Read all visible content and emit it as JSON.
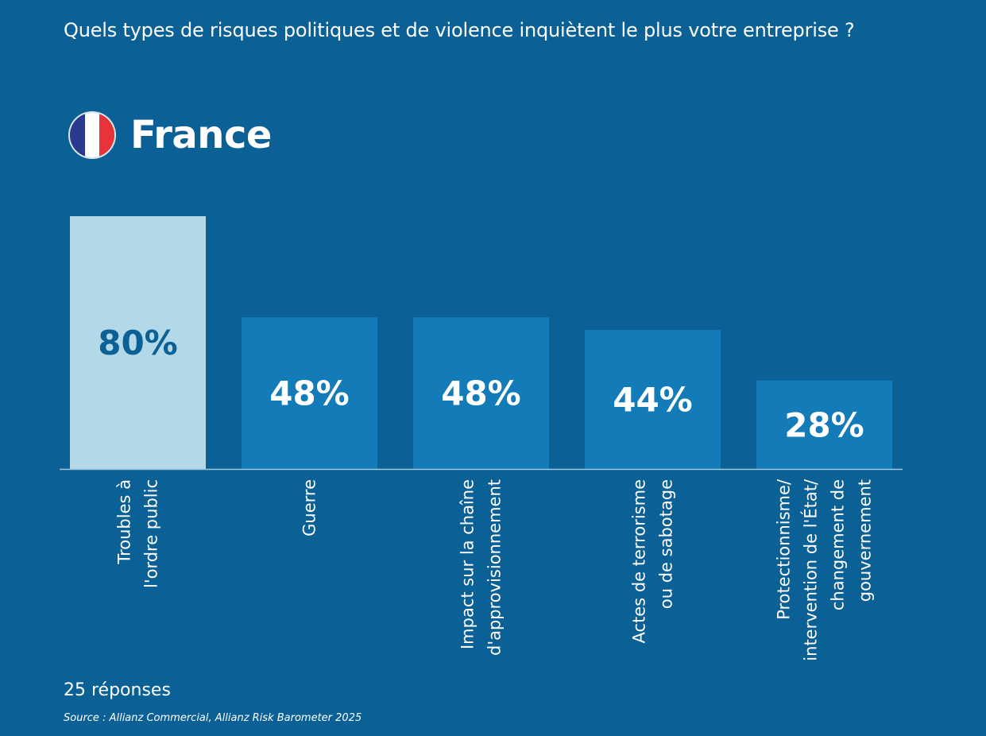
{
  "header": {
    "question": "Quels types de risques politiques et de violence inquiètent le plus votre entreprise ?",
    "country": "France",
    "flag_icon": "france-flag-icon",
    "flag_colors": [
      "#2b3a8c",
      "#ffffff",
      "#e8333b"
    ]
  },
  "colors": {
    "background": "#0b6196",
    "bar_highlight": "#b3d8e8",
    "bar_default": "#127bb8",
    "value_on_highlight": "#0b6196",
    "value_on_default": "#ffffff",
    "baseline": "#9fc4dc"
  },
  "chart_data": {
    "type": "bar",
    "categories": [
      [
        "Troubles à",
        "l'ordre public"
      ],
      [
        "Guerre"
      ],
      [
        "Impact sur la chaîne",
        "d'approvisionnement"
      ],
      [
        "Actes de terrorisme",
        "ou de sabotage"
      ],
      [
        "Protectionnisme/",
        "intervention de l'État/",
        "changement de",
        "gouvernement"
      ]
    ],
    "values": [
      80,
      48,
      48,
      44,
      28
    ],
    "value_labels": [
      "80%",
      "48%",
      "48%",
      "44%",
      "28%"
    ],
    "highlight_index": 0,
    "ylim": [
      0,
      80
    ],
    "grid": false,
    "title": "",
    "xlabel": "",
    "ylabel": ""
  },
  "footer": {
    "responses": "25 réponses",
    "source": "Source : Allianz Commercial, Allianz Risk Barometer 2025"
  }
}
